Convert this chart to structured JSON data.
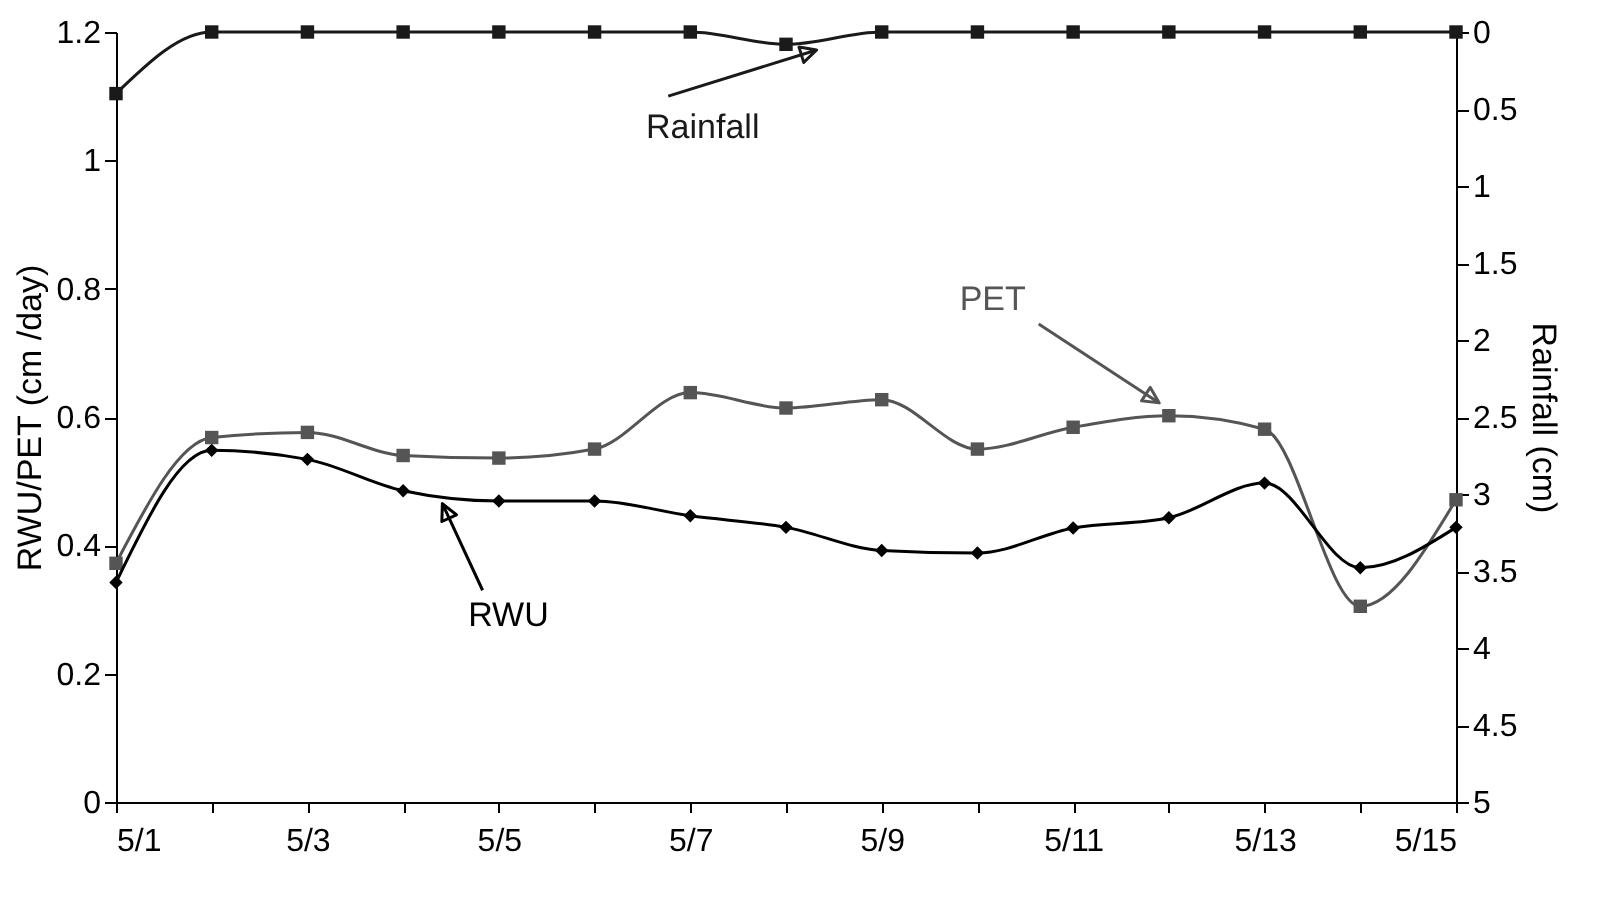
{
  "chart_data": {
    "type": "line",
    "categories": [
      "5/1",
      null,
      "5/3",
      null,
      "5/5",
      null,
      "5/7",
      null,
      "5/9",
      null,
      "5/11",
      null,
      "5/13",
      null,
      "5/15"
    ],
    "series": [
      {
        "name": "Rainfall",
        "color": "#1a1a1a",
        "axis": "y2",
        "marker": "square",
        "values": [
          0.4,
          0,
          0,
          0,
          0,
          0,
          0,
          0.08,
          0,
          0,
          0,
          0,
          0,
          0,
          0
        ]
      },
      {
        "name": "PET",
        "color": "#555555",
        "marker": "square",
        "values": [
          0.372,
          0.568,
          0.576,
          0.54,
          0.536,
          0.55,
          0.638,
          0.614,
          0.627,
          0.55,
          0.584,
          0.602,
          0.581,
          0.305,
          0.471
        ]
      },
      {
        "name": "RWU",
        "color": "#000000",
        "marker": "diamond",
        "values": [
          0.342,
          0.548,
          0.534,
          0.485,
          0.469,
          0.469,
          0.446,
          0.428,
          0.392,
          0.388,
          0.427,
          0.443,
          0.497,
          0.365,
          0.428
        ]
      }
    ],
    "ylabel": "RWU/PET (cm /day)",
    "y2label": "Rainfall (cm)",
    "ylim": [
      0,
      1.2
    ],
    "yticks": [
      0,
      0.2,
      0.4,
      0.6,
      0.8,
      1,
      1.2
    ],
    "y2lim": [
      5,
      0
    ],
    "y2ticks": [
      0,
      0.5,
      1,
      1.5,
      2,
      2.5,
      3,
      3.5,
      4,
      4.5,
      5
    ],
    "grid": false
  }
}
